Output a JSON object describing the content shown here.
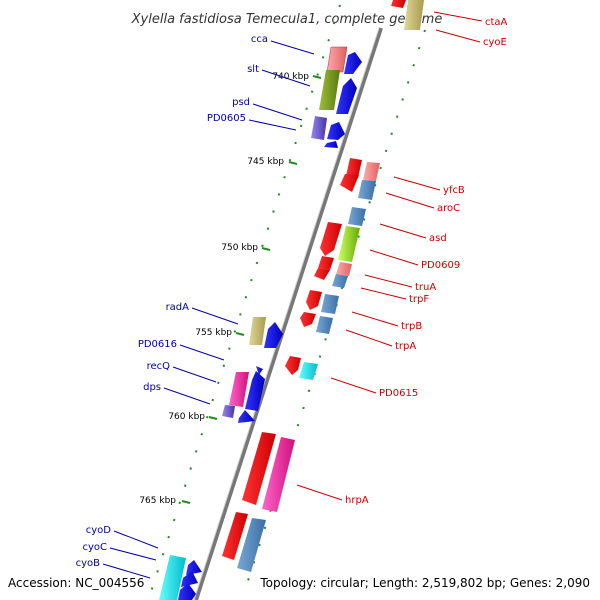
{
  "title": "Xylella fastidiosa Temecula1, complete genome",
  "footer": {
    "accession": "Accession: NC_004556",
    "summary": "Topology: circular; Length: 2,519,802 bp; Genes: 2,090"
  },
  "ticks": [
    "740 kbp",
    "745 kbp",
    "750 kbp",
    "755 kbp",
    "760 kbp",
    "765 kbp"
  ],
  "colors": {
    "forward_label": "#0000aa",
    "reverse_label": "#cc0000",
    "backbone": "#888888",
    "tick": "#228b22"
  },
  "genes_left": [
    {
      "label": "cca"
    },
    {
      "label": "slt"
    },
    {
      "label": "psd"
    },
    {
      "label": "PD0605"
    },
    {
      "label": "radA"
    },
    {
      "label": "PD0616"
    },
    {
      "label": "recQ"
    },
    {
      "label": "dps"
    },
    {
      "label": "cyoD"
    },
    {
      "label": "cyoC"
    },
    {
      "label": "cyoB"
    }
  ],
  "genes_right": [
    {
      "label": "ctaA"
    },
    {
      "label": "cyoE"
    },
    {
      "label": "yfcB"
    },
    {
      "label": "aroC"
    },
    {
      "label": "asd"
    },
    {
      "label": "PD0609"
    },
    {
      "label": "truA"
    },
    {
      "label": "trpF"
    },
    {
      "label": "trpB"
    },
    {
      "label": "trpA"
    },
    {
      "label": "PD0615"
    },
    {
      "label": "hrpA"
    }
  ]
}
